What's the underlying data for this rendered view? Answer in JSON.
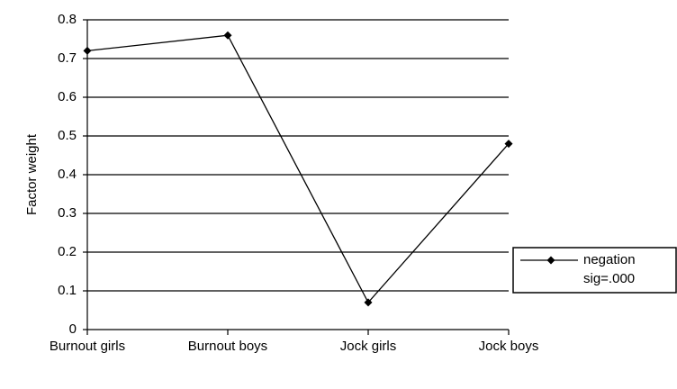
{
  "chart_data": {
    "type": "line",
    "y_label": "Factor weight",
    "categories": [
      "Burnout girls",
      "Burnout boys",
      "Jock girls",
      "Jock boys"
    ],
    "series": [
      {
        "name": "negation",
        "color": "#000000",
        "values": [
          0.72,
          0.76,
          0.07,
          0.48
        ]
      }
    ],
    "legend_note": "sig=.000",
    "ylim": [
      0,
      0.8
    ],
    "yticks": [
      0,
      0.1,
      0.2,
      0.3,
      0.4,
      0.5,
      0.6,
      0.7,
      0.8
    ],
    "grid": true,
    "legend": "right"
  }
}
